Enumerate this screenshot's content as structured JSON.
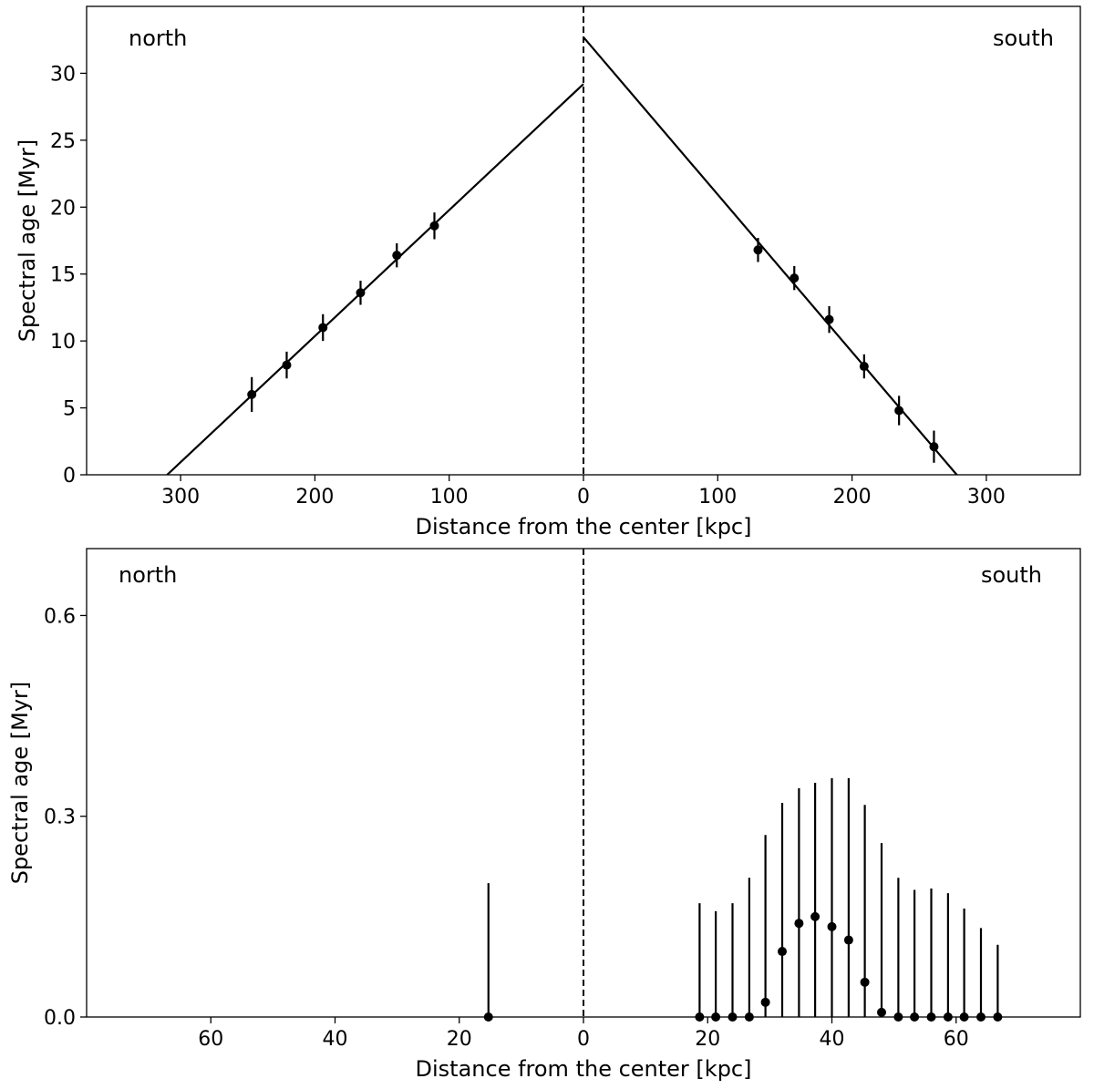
{
  "chart_data": [
    {
      "type": "scatter",
      "title": "",
      "xlabel": "Distance from the center [kpc]",
      "ylabel": "Spectral age [Myr]",
      "xlim": [
        -370,
        370
      ],
      "ylim": [
        0,
        35
      ],
      "xticks": [
        -300,
        -200,
        -100,
        0,
        100,
        200,
        300
      ],
      "xtick_labels": [
        "300",
        "200",
        "100",
        "0",
        "100",
        "200",
        "300"
      ],
      "yticks": [
        0,
        5,
        10,
        15,
        20,
        25,
        30
      ],
      "ytick_labels": [
        "0",
        "5",
        "10",
        "15",
        "20",
        "25",
        "30"
      ],
      "annotations": {
        "left": "north",
        "right": "south"
      },
      "center_line": {
        "x": 0,
        "style": "dashed"
      },
      "grid": false,
      "points": [
        {
          "x": -247,
          "y": 6.0,
          "err": 1.3
        },
        {
          "x": -221,
          "y": 8.2,
          "err": 1.0
        },
        {
          "x": -194,
          "y": 11.0,
          "err": 1.0
        },
        {
          "x": -166,
          "y": 13.6,
          "err": 0.9
        },
        {
          "x": -139,
          "y": 16.4,
          "err": 0.9
        },
        {
          "x": -111,
          "y": 18.6,
          "err": 1.0
        },
        {
          "x": 130,
          "y": 16.8,
          "err": 0.9
        },
        {
          "x": 157,
          "y": 14.7,
          "err": 0.9
        },
        {
          "x": 183,
          "y": 11.6,
          "err": 1.0
        },
        {
          "x": 209,
          "y": 8.1,
          "err": 0.9
        },
        {
          "x": 235,
          "y": 4.8,
          "err": 1.1
        },
        {
          "x": 261,
          "y": 2.1,
          "err": 1.2
        }
      ],
      "fit_lines": [
        {
          "x": [
            -310,
            0
          ],
          "y": [
            0,
            29.2
          ]
        },
        {
          "x": [
            0,
            278
          ],
          "y": [
            32.7,
            0
          ]
        }
      ]
    },
    {
      "type": "scatter",
      "title": "",
      "xlabel": "Distance from the center [kpc]",
      "ylabel": "Spectral age [Myr]",
      "xlim": [
        -80,
        80
      ],
      "ylim": [
        0,
        0.7
      ],
      "xticks": [
        -60,
        -40,
        -20,
        0,
        20,
        40,
        60
      ],
      "xtick_labels": [
        "60",
        "40",
        "20",
        "0",
        "20",
        "40",
        "60"
      ],
      "yticks": [
        0,
        0.3,
        0.6
      ],
      "ytick_labels": [
        "0.0",
        "0.3",
        "0.6"
      ],
      "annotations": {
        "left": "north",
        "right": "south"
      },
      "center_line": {
        "x": 0,
        "style": "dashed"
      },
      "grid": false,
      "points": [
        {
          "x": -15.3,
          "y": 0.0,
          "err": 0.2
        },
        {
          "x": 18.7,
          "y": 0.0,
          "err": 0.17
        },
        {
          "x": 21.3,
          "y": 0.0,
          "err": 0.158
        },
        {
          "x": 24.0,
          "y": 0.0,
          "err": 0.17
        },
        {
          "x": 26.7,
          "y": 0.0,
          "err": 0.208
        },
        {
          "x": 29.3,
          "y": 0.022,
          "err": 0.25
        },
        {
          "x": 32.0,
          "y": 0.098,
          "err": 0.222
        },
        {
          "x": 34.7,
          "y": 0.14,
          "err": 0.202
        },
        {
          "x": 37.3,
          "y": 0.15,
          "err": 0.2
        },
        {
          "x": 40.0,
          "y": 0.135,
          "err": 0.222
        },
        {
          "x": 42.7,
          "y": 0.115,
          "err": 0.242
        },
        {
          "x": 45.3,
          "y": 0.052,
          "err": 0.265
        },
        {
          "x": 48.0,
          "y": 0.007,
          "err": 0.253
        },
        {
          "x": 50.7,
          "y": 0.0,
          "err": 0.208
        },
        {
          "x": 53.3,
          "y": 0.0,
          "err": 0.19
        },
        {
          "x": 56.0,
          "y": 0.0,
          "err": 0.192
        },
        {
          "x": 58.7,
          "y": 0.0,
          "err": 0.185
        },
        {
          "x": 61.3,
          "y": 0.0,
          "err": 0.162
        },
        {
          "x": 64.0,
          "y": 0.0,
          "err": 0.133
        },
        {
          "x": 66.7,
          "y": 0.0,
          "err": 0.108
        }
      ]
    }
  ]
}
